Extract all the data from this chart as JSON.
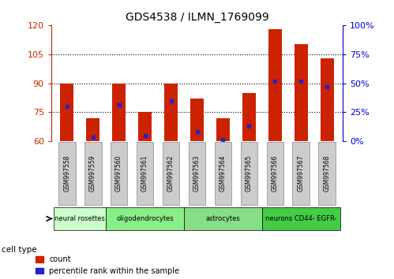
{
  "title": "GDS4538 / ILMN_1769099",
  "samples": [
    "GSM997558",
    "GSM997559",
    "GSM997560",
    "GSM997561",
    "GSM997562",
    "GSM997563",
    "GSM997564",
    "GSM997565",
    "GSM997566",
    "GSM997567",
    "GSM997568"
  ],
  "count_values": [
    90,
    72,
    90,
    75,
    90,
    82,
    72,
    85,
    118,
    110,
    103
  ],
  "percentile_values": [
    78,
    62,
    79,
    63,
    81,
    65,
    61,
    68,
    91,
    91,
    88
  ],
  "ylim_left": [
    60,
    120
  ],
  "ylim_right": [
    0,
    100
  ],
  "yticks_left": [
    60,
    75,
    90,
    105,
    120
  ],
  "yticks_right": [
    0,
    25,
    50,
    75,
    100
  ],
  "bar_color": "#cc2200",
  "marker_color": "#2222cc",
  "cell_types": [
    {
      "label": "neural rosettes",
      "start": 0,
      "end": 2,
      "color": "#ccffcc"
    },
    {
      "label": "oligodendrocytes",
      "start": 2,
      "end": 5,
      "color": "#88ee88"
    },
    {
      "label": "astrocytes",
      "start": 5,
      "end": 8,
      "color": "#88dd88"
    },
    {
      "label": "neurons CD44- EGFR-",
      "start": 8,
      "end": 11,
      "color": "#44cc44"
    }
  ],
  "tick_bg_color": "#cccccc",
  "right_axis_color": "#0000cc",
  "left_axis_color": "#cc2200",
  "bar_width": 0.5
}
